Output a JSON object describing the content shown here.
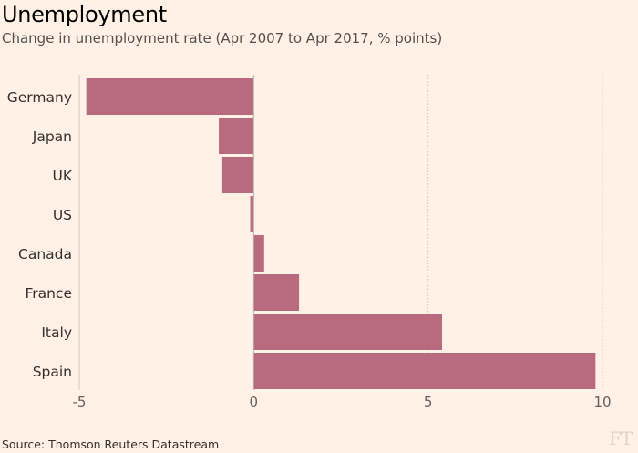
{
  "header": {
    "title": "Unemployment",
    "subtitle": "Change in unemployment rate (Apr 2007 to Apr 2017, % points)"
  },
  "footer": {
    "source": "Source: Thomson Reuters Datastream",
    "logo_text": "FT"
  },
  "colors": {
    "bar": "#b96a7e",
    "background": "#fff1e5",
    "axis": "#b8b0a9",
    "grid": "#cec6be",
    "logo": "#e0d3c7"
  },
  "chart_data": {
    "type": "bar",
    "orientation": "horizontal",
    "title": "Unemployment",
    "subtitle": "Change in unemployment rate (Apr 2007 to Apr 2017, % points)",
    "categories": [
      "Germany",
      "Japan",
      "UK",
      "US",
      "Canada",
      "France",
      "Italy",
      "Spain"
    ],
    "values": [
      -4.8,
      -1.0,
      -0.9,
      -0.1,
      0.3,
      1.3,
      5.4,
      9.8
    ],
    "xlim": [
      -5,
      10
    ],
    "xticks": [
      -5,
      0,
      5,
      10
    ],
    "xtick_labels": [
      "-5",
      "0",
      "5",
      "10"
    ],
    "grid": "vertical dotted at 5 and 10",
    "xlabel": "",
    "ylabel": ""
  }
}
